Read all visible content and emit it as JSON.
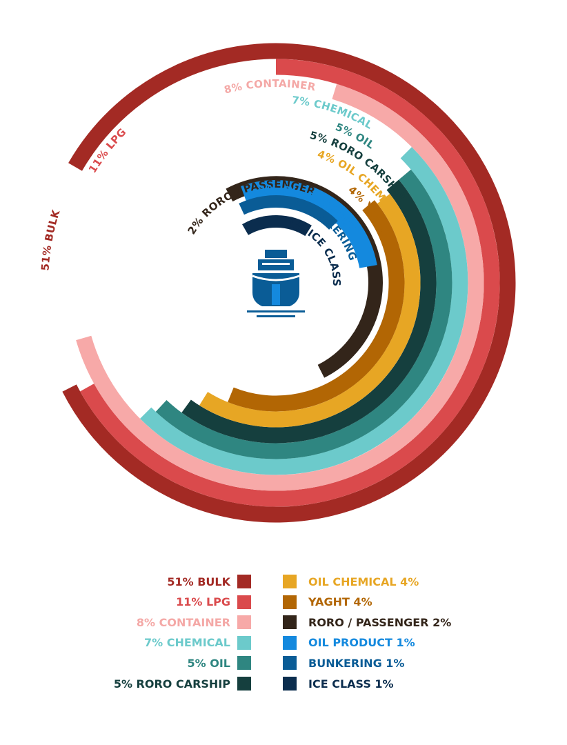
{
  "chart_data": {
    "type": "radial-bar",
    "title": "",
    "series": [
      {
        "label": "51% BULK",
        "legend": "51% BULK",
        "value": 51,
        "color": "#A32A24",
        "text_color": "#A32A24"
      },
      {
        "label": "11% LPG",
        "legend": "11% LPG",
        "value": 11,
        "color": "#DA4A4C",
        "text_color": "#DA4A4C"
      },
      {
        "label": "8% CONTAINER",
        "legend": "8% CONTAINER",
        "value": 8,
        "color": "#F7A9A8",
        "text_color": "#F4A8A6"
      },
      {
        "label": "7% CHEMICAL",
        "legend": "7% CHEMICAL",
        "value": 7,
        "color": "#6CCACB",
        "text_color": "#6CCACB"
      },
      {
        "label": "5% OIL",
        "legend": "5% OIL",
        "value": 5,
        "color": "#2F8681",
        "text_color": "#2F8681"
      },
      {
        "label": "5% RORO CARSHIP",
        "legend": "5% RORO CARSHIP",
        "value": 5,
        "color": "#153F3E",
        "text_color": "#153F3E"
      },
      {
        "label": "4% OIL CHEMICAL",
        "legend": "OIL CHEMICAL 4%",
        "value": 4,
        "color": "#E7A624",
        "text_color": "#E7A624"
      },
      {
        "label": "4% YAGHT",
        "legend": "YAGHT 4%",
        "value": 4,
        "color": "#B26604",
        "text_color": "#B26604"
      },
      {
        "label": "2% RORO / PASSENGER",
        "legend": "RORO / PASSENGER 2%",
        "value": 2,
        "color": "#33251A",
        "text_color": "#33251A"
      },
      {
        "label": "1% OIL PRODUCT",
        "legend": "OIL PRODUCT 1%",
        "value": 1,
        "color": "#1489DE",
        "text_color": "#1489DE"
      },
      {
        "label": "1% BUNKERING",
        "legend": "BUNKERING 1%",
        "value": 1,
        "color": "#0A5C96",
        "text_color": "#0A5C96"
      },
      {
        "label": "1% ICE CLASS",
        "legend": "ICE CLASS 1%",
        "value": 1,
        "color": "#0B2D4E",
        "text_color": "#0B2D4E"
      }
    ]
  },
  "center_icon": "ship-icon",
  "center_icon_color": "#0A5C96"
}
